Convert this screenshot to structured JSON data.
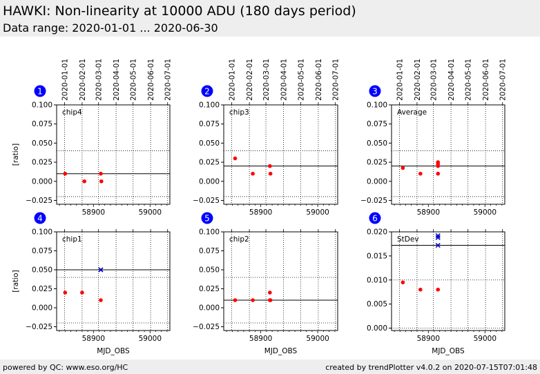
{
  "header": {
    "title": "HAWKI: Non-linearity at 10000 ADU (180 days period)",
    "subtitle": "Data range: 2020-01-01 ... 2020-06-30"
  },
  "footer": {
    "left": "powered by QC: www.eso.org/HC",
    "right": "created by trendPlotter v4.0.2 on 2020-07-15T07:01:48"
  },
  "colors": {
    "data_points": "#ff0000",
    "reference_points": "#0000cc",
    "badge": "#0000ff",
    "band": "#eeeeee"
  },
  "chart_data": [
    {
      "type": "scatter",
      "panel": "1",
      "label": "chip4",
      "ylabel": "[ratio]",
      "xlabel": "",
      "ylim": [
        -0.03,
        0.1
      ],
      "yticks": [
        -0.025,
        0.0,
        0.025,
        0.05,
        0.075,
        0.1
      ],
      "ytick_labels": [
        "−0.025",
        "0.000",
        "0.025",
        "0.050",
        "0.075",
        "0.100"
      ],
      "reference_line": 0.01,
      "limits": [
        -0.02,
        0.04
      ],
      "points": [
        [
          58850,
          0.01
        ],
        [
          58884,
          0.0
        ],
        [
          58913,
          0.01
        ],
        [
          58914,
          0.0
        ]
      ],
      "reference_points": []
    },
    {
      "type": "scatter",
      "panel": "2",
      "label": "chip3",
      "ylabel": "",
      "xlabel": "",
      "ylim": [
        -0.03,
        0.1
      ],
      "yticks": [
        -0.025,
        0.0,
        0.025,
        0.05,
        0.075,
        0.1
      ],
      "ytick_labels": [
        "−0.025",
        "0.000",
        "0.025",
        "0.050",
        "0.075",
        "0.100"
      ],
      "reference_line": 0.02,
      "limits": [
        -0.02,
        0.04
      ],
      "points": [
        [
          58855,
          0.03
        ],
        [
          58886,
          0.01
        ],
        [
          58916,
          0.02
        ],
        [
          58917,
          0.01
        ]
      ],
      "reference_points": []
    },
    {
      "type": "scatter",
      "panel": "3",
      "label": "Average",
      "ylabel": "",
      "xlabel": "",
      "ylim": [
        -0.03,
        0.1
      ],
      "yticks": [
        -0.025,
        0.0,
        0.025,
        0.05,
        0.075,
        0.1
      ],
      "ytick_labels": [
        "−0.025",
        "0.000",
        "0.025",
        "0.050",
        "0.075",
        "0.100"
      ],
      "reference_line": 0.02,
      "limits": [
        -0.02,
        0.04
      ],
      "points": [
        [
          58855,
          0.0175
        ],
        [
          58886,
          0.01
        ],
        [
          58917,
          0.025
        ],
        [
          58917,
          0.0225
        ],
        [
          58917,
          0.02
        ],
        [
          58917,
          0.01
        ]
      ],
      "reference_points": []
    },
    {
      "type": "scatter",
      "panel": "4",
      "label": "chip1",
      "ylabel": "[ratio]",
      "xlabel": "MJD_OBS",
      "ylim": [
        -0.03,
        0.1
      ],
      "yticks": [
        -0.025,
        0.0,
        0.025,
        0.05,
        0.075,
        0.1
      ],
      "ytick_labels": [
        "−0.025",
        "0.000",
        "0.025",
        "0.050",
        "0.075",
        "0.100"
      ],
      "reference_line": 0.05,
      "limits": [
        -0.02,
        0.04
      ],
      "points": [
        [
          58850,
          0.02
        ],
        [
          58880,
          0.02
        ],
        [
          58913,
          0.01
        ]
      ],
      "reference_points": [
        [
          58913,
          0.05
        ]
      ]
    },
    {
      "type": "scatter",
      "panel": "5",
      "label": "chip2",
      "ylabel": "",
      "xlabel": "MJD_OBS",
      "ylim": [
        -0.03,
        0.1
      ],
      "yticks": [
        -0.025,
        0.0,
        0.025,
        0.05,
        0.075,
        0.1
      ],
      "ytick_labels": [
        "−0.025",
        "0.000",
        "0.025",
        "0.050",
        "0.075",
        "0.100"
      ],
      "reference_line": 0.01,
      "limits": [
        -0.02,
        0.04
      ],
      "points": [
        [
          58855,
          0.01
        ],
        [
          58886,
          0.01
        ],
        [
          58916,
          0.02
        ],
        [
          58916,
          0.01
        ],
        [
          58917,
          0.01
        ]
      ],
      "reference_points": []
    },
    {
      "type": "scatter",
      "panel": "6",
      "label": "StDev",
      "ylabel": "",
      "xlabel": "MJD_OBS",
      "ylim": [
        -0.0005,
        0.02
      ],
      "yticks": [
        0.0,
        0.005,
        0.01,
        0.015,
        0.02
      ],
      "ytick_labels": [
        "0.000",
        "0.005",
        "0.010",
        "0.015",
        "0.020"
      ],
      "reference_line": 0.0172,
      "limits": [
        0.0,
        0.01
      ],
      "points": [
        [
          58855,
          0.0095
        ],
        [
          58886,
          0.008
        ],
        [
          58917,
          0.008
        ]
      ],
      "reference_points": [
        [
          58917,
          0.0192
        ],
        [
          58917,
          0.0188
        ],
        [
          58917,
          0.0172
        ]
      ]
    }
  ],
  "axes": {
    "xlim": [
      58835,
      59035
    ],
    "xticks": [
      58900,
      59000
    ],
    "xtick_labels": [
      "58900",
      "59000"
    ],
    "x_minor_step": 10,
    "date_ticks": [
      58849,
      58880,
      58909,
      58940,
      58970,
      59001,
      59031
    ],
    "date_tick_labels": [
      "2020-01-01",
      "2020-02-01",
      "2020-03-01",
      "2020-04-01",
      "2020-05-01",
      "2020-06-01",
      "2020-07-01"
    ]
  }
}
